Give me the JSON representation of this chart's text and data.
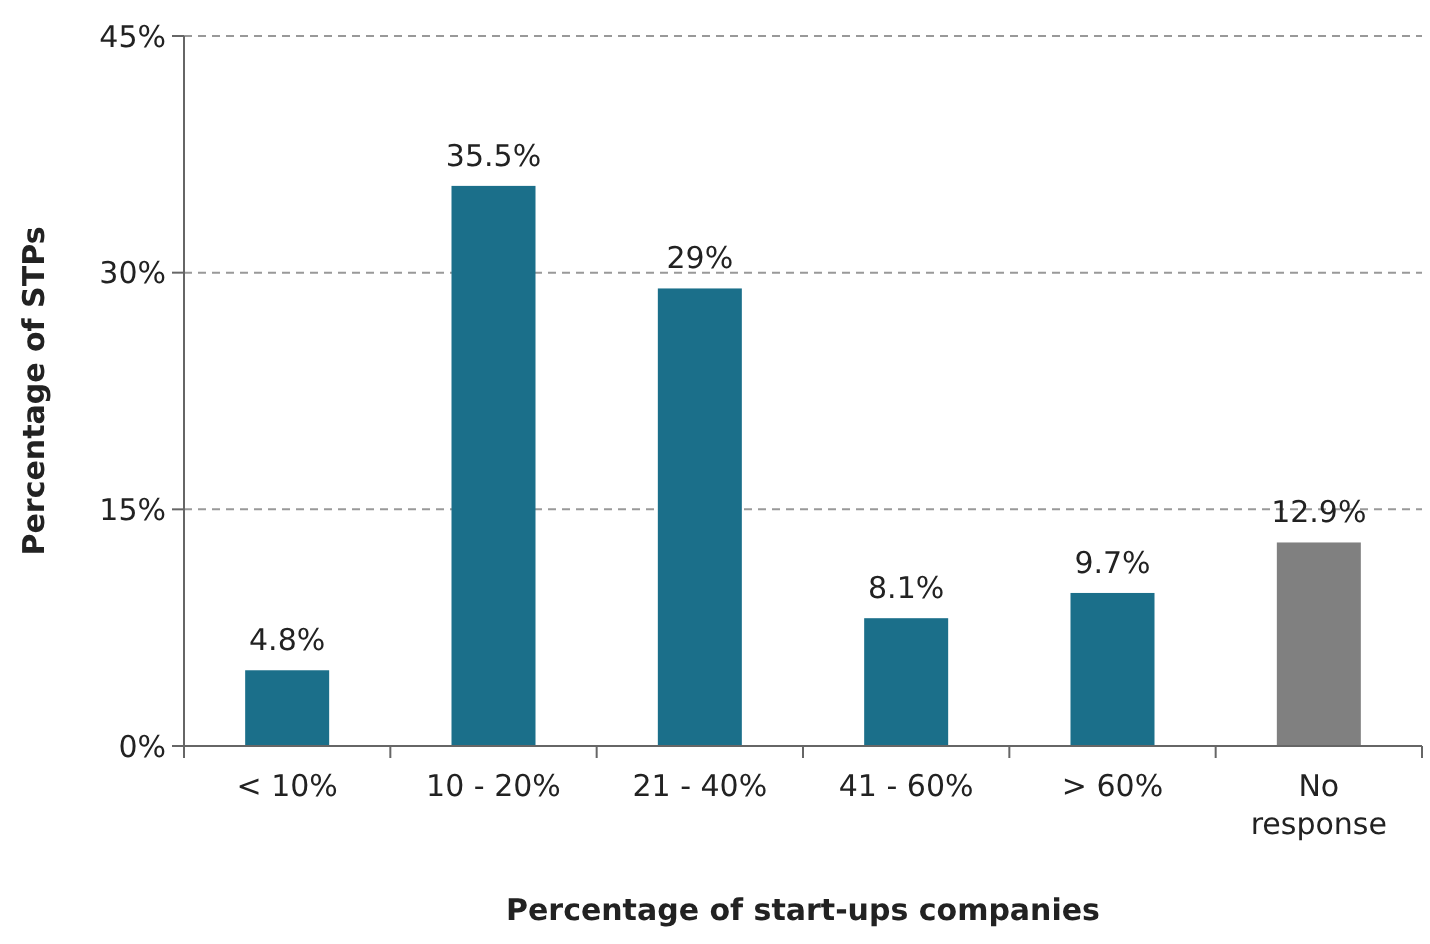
{
  "chart_data": {
    "type": "bar",
    "xlabel": "Percentage of start-ups companies",
    "ylabel": "Percentage of STPs",
    "categories": [
      "< 10%",
      "10 - 20%",
      "21 - 40%",
      "41 - 60%",
      "> 60%",
      "No response"
    ],
    "values": [
      4.8,
      35.5,
      29,
      8.1,
      9.7,
      12.9
    ],
    "colors": [
      "#1b6f8a",
      "#1b6f8a",
      "#1b6f8a",
      "#1b6f8a",
      "#1b6f8a",
      "#808080"
    ],
    "value_labels": [
      "4.8%",
      "35.5%",
      "29%",
      "8.1%",
      "9.7%",
      "12.9%"
    ],
    "ylim": [
      0,
      45
    ],
    "yticks": [
      {
        "value": 0,
        "label": "0%"
      },
      {
        "value": 15,
        "label": "15%"
      },
      {
        "value": 30,
        "label": "30%"
      },
      {
        "value": 45,
        "label": "45%"
      }
    ],
    "grid": "y"
  }
}
